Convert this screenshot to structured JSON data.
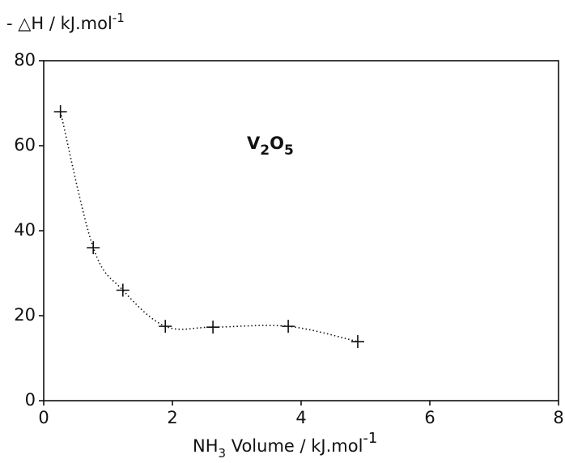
{
  "chart_data": {
    "type": "scatter",
    "ylabel": [
      "- △H / kJ.mol",
      "-1"
    ],
    "xlabel": [
      "NH",
      "3",
      " Volume / kJ.mol",
      "-1"
    ],
    "annotation": [
      "V",
      "2",
      "O",
      "5"
    ],
    "x": [
      0.26,
      0.77,
      1.23,
      1.89,
      2.63,
      3.8,
      4.88
    ],
    "values": [
      68,
      36,
      26,
      17.5,
      17.3,
      17.5,
      13.9
    ],
    "color": "#111111",
    "xlim": [
      0,
      8
    ],
    "xticks": [
      0,
      2,
      4,
      6,
      8
    ],
    "ylim": [
      0,
      80
    ],
    "yticks": [
      0,
      20,
      40,
      60,
      80
    ],
    "grid": false
  }
}
